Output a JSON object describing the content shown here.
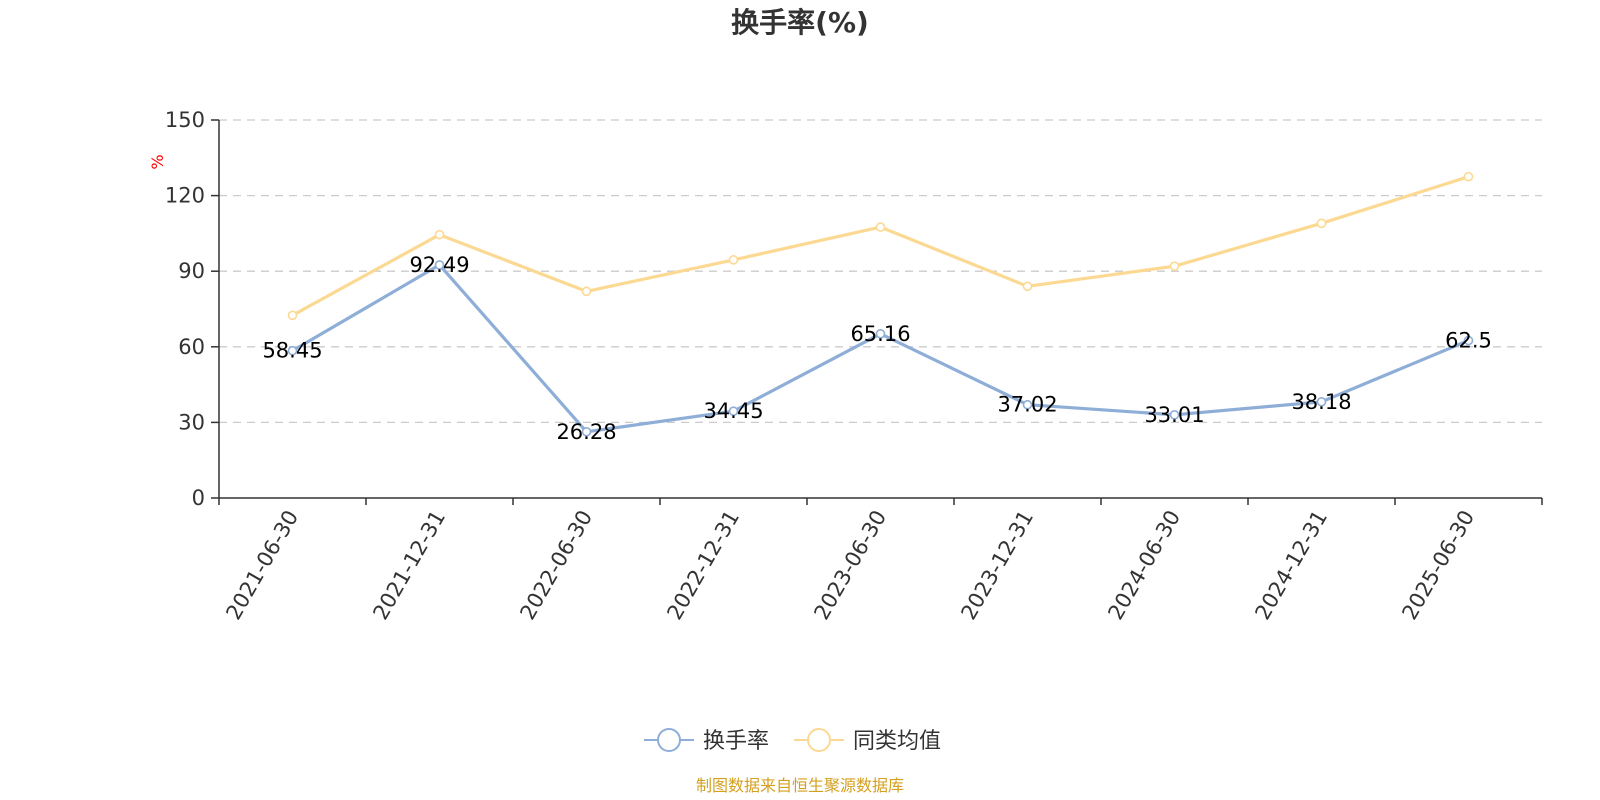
{
  "chart_data": {
    "type": "line",
    "title": "换手率(%)",
    "ylabel": "%",
    "xlabel": "",
    "categories": [
      "2021-06-30",
      "2021-12-31",
      "2022-06-30",
      "2022-12-31",
      "2023-06-30",
      "2023-12-31",
      "2024-06-30",
      "2024-12-31",
      "2025-06-30"
    ],
    "ylim": [
      0,
      150
    ],
    "yticks": [
      0,
      30,
      60,
      90,
      120,
      150
    ],
    "grid": true,
    "legend_position": "bottom",
    "series": [
      {
        "name": "换手率",
        "values": [
          58.45,
          92.49,
          26.28,
          34.45,
          65.16,
          37.02,
          33.01,
          38.18,
          62.5
        ],
        "labels": [
          "58.45",
          "92.49",
          "26.28",
          "34.45",
          "65.16",
          "37.02",
          "33.01",
          "38.18",
          "62.5"
        ],
        "color": "#8eaed8",
        "show_labels": true
      },
      {
        "name": "同类均值",
        "values": [
          72.5,
          104.5,
          82.0,
          94.5,
          107.5,
          84.0,
          92.0,
          109.0,
          127.5
        ],
        "color": "#fcd993",
        "show_labels": false
      }
    ],
    "source": "制图数据来自恒生聚源数据库",
    "colors": {
      "axis": "#333333",
      "grid": "#cccccc",
      "unit": "#ff0000",
      "source": "#d4a020"
    }
  }
}
